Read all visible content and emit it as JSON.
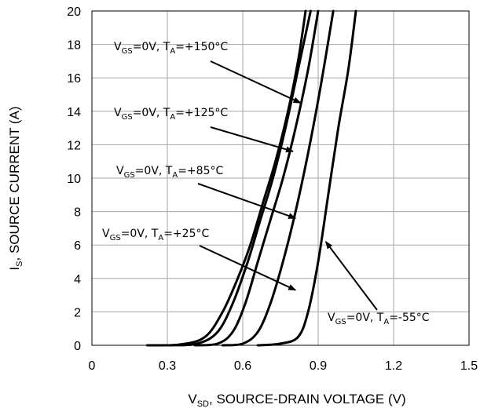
{
  "chart_data": {
    "type": "line",
    "xlabel": {
      "main": "V",
      "sub": "SD",
      "rest": ", SOURCE-DRAIN VOLTAGE (V)"
    },
    "ylabel": {
      "main": "I",
      "sub": "S",
      "rest": ", SOURCE CURRENT (A)"
    },
    "xlim": [
      0,
      1.5
    ],
    "ylim": [
      0,
      20
    ],
    "x_ticks": [
      "0",
      "0.3",
      "0.6",
      "0.9",
      "1.2",
      "1.5"
    ],
    "y_ticks": [
      "0",
      "2",
      "4",
      "6",
      "8",
      "10",
      "12",
      "14",
      "16",
      "18",
      "20"
    ],
    "grid": true,
    "series": [
      {
        "name": "T_A=+150°C",
        "points": [
          [
            0.22,
            0
          ],
          [
            0.35,
            0.05
          ],
          [
            0.45,
            0.5
          ],
          [
            0.52,
            2
          ],
          [
            0.58,
            4
          ],
          [
            0.63,
            6
          ],
          [
            0.68,
            8.5
          ],
          [
            0.73,
            11
          ],
          [
            0.78,
            14
          ],
          [
            0.82,
            17
          ],
          [
            0.85,
            20
          ]
        ]
      },
      {
        "name": "T_A=+125°C",
        "points": [
          [
            0.31,
            0
          ],
          [
            0.42,
            0.1
          ],
          [
            0.5,
            0.8
          ],
          [
            0.56,
            2.5
          ],
          [
            0.62,
            5
          ],
          [
            0.67,
            7.5
          ],
          [
            0.72,
            10
          ],
          [
            0.77,
            13
          ],
          [
            0.82,
            16.5
          ],
          [
            0.87,
            20
          ]
        ]
      },
      {
        "name": "T_A=+85°C",
        "points": [
          [
            0.41,
            0
          ],
          [
            0.5,
            0.1
          ],
          [
            0.56,
            0.8
          ],
          [
            0.61,
            2.5
          ],
          [
            0.66,
            5
          ],
          [
            0.71,
            7.5
          ],
          [
            0.76,
            10
          ],
          [
            0.81,
            13
          ],
          [
            0.86,
            16.5
          ],
          [
            0.9,
            20
          ]
        ]
      },
      {
        "name": "T_A=+25°C",
        "points": [
          [
            0.52,
            0
          ],
          [
            0.6,
            0.1
          ],
          [
            0.66,
            0.8
          ],
          [
            0.71,
            2.5
          ],
          [
            0.76,
            5
          ],
          [
            0.81,
            8
          ],
          [
            0.86,
            11.5
          ],
          [
            0.91,
            15.5
          ],
          [
            0.96,
            20
          ]
        ]
      },
      {
        "name": "T_A=-55°C",
        "points": [
          [
            0.66,
            0
          ],
          [
            0.75,
            0.1
          ],
          [
            0.82,
            0.5
          ],
          [
            0.86,
            2
          ],
          [
            0.9,
            5
          ],
          [
            0.94,
            9
          ],
          [
            0.98,
            13
          ],
          [
            1.02,
            16.5
          ],
          [
            1.05,
            20
          ]
        ]
      }
    ],
    "annotations": [
      {
        "label_pre": "V",
        "label_sub1": "GS",
        "label_mid": "=0V, T",
        "label_sub2": "A",
        "label_post": "=+150°C",
        "arrow_to": [
          0.83,
          14.5
        ]
      },
      {
        "label_pre": "V",
        "label_sub1": "GS",
        "label_mid": "=0V, T",
        "label_sub2": "A",
        "label_post": "=+125°C",
        "arrow_to": [
          0.8,
          11.6
        ]
      },
      {
        "label_pre": "V",
        "label_sub1": "GS",
        "label_mid": "=0V, T",
        "label_sub2": "A",
        "label_post": "=+85°C",
        "arrow_to": [
          0.81,
          7.6
        ]
      },
      {
        "label_pre": "V",
        "label_sub1": "GS",
        "label_mid": "=0V, T",
        "label_sub2": "A",
        "label_post": "=+25°C",
        "arrow_to": [
          0.81,
          3.3
        ]
      },
      {
        "label_pre": "V",
        "label_sub1": "GS",
        "label_mid": "=0V, T",
        "label_sub2": "A",
        "label_post": "=-55°C",
        "arrow_to": [
          0.93,
          6.2
        ]
      }
    ]
  }
}
